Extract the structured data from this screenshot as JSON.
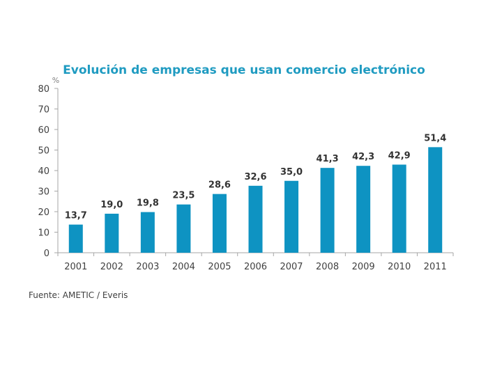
{
  "chart_data": {
    "type": "bar",
    "title": "Evolución de empresas que usan comercio electrónico",
    "xlabel": "",
    "ylabel": "%",
    "categories": [
      "2001",
      "2002",
      "2003",
      "2004",
      "2005",
      "2006",
      "2007",
      "2008",
      "2009",
      "2010",
      "2011"
    ],
    "values": [
      13.7,
      19.0,
      19.8,
      23.5,
      28.6,
      32.6,
      35.0,
      41.3,
      42.3,
      42.9,
      51.4
    ],
    "data_labels": [
      "13,7",
      "19,0",
      "19,8",
      "23,5",
      "28,6",
      "32,6",
      "35,0",
      "41,3",
      "42,3",
      "42,9",
      "51,4"
    ],
    "ylim": [
      0,
      80
    ],
    "yticks": [
      0,
      10,
      20,
      30,
      40,
      50,
      60,
      70,
      80
    ],
    "grid": false,
    "legend": "none",
    "bar_color": "#0e93c2",
    "title_color": "#1f9bc1"
  },
  "source": "Fuente: AMETIC / Everis"
}
